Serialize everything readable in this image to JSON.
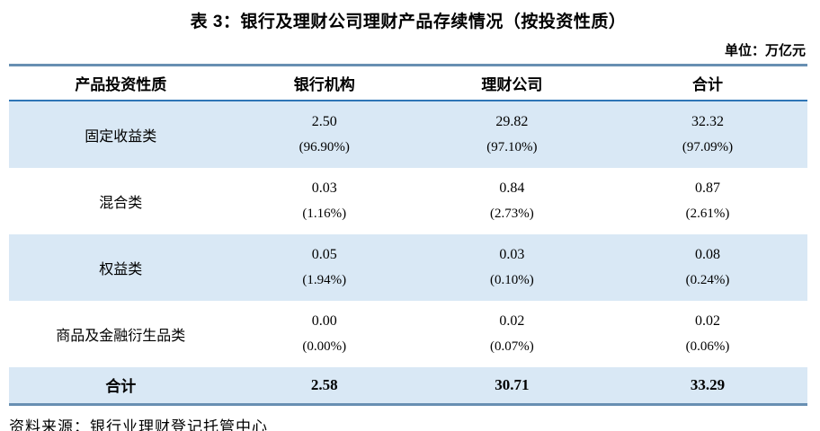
{
  "page": {
    "title": "表 3：银行及理财公司理财产品存续情况（按投资性质）",
    "unit_label": "单位：万亿元",
    "source_label": "资料来源：银行业理财登记托管中心"
  },
  "colors": {
    "row_highlight": "#D9E8F5",
    "outer_border": "#688FB2",
    "header_underline": "#2E75B6"
  },
  "chart_data": {
    "type": "table",
    "title": "表 3：银行及理财公司理财产品存续情况（按投资性质）",
    "unit": "万亿元",
    "columns": [
      "产品投资性质",
      "银行机构",
      "理财公司",
      "合计"
    ],
    "rows": [
      {
        "label": "固定收益类",
        "values": [
          "2.50",
          "29.82",
          "32.32"
        ],
        "percents": [
          "(96.90%)",
          "(97.10%)",
          "(97.09%)"
        ]
      },
      {
        "label": "混合类",
        "values": [
          "0.03",
          "0.84",
          "0.87"
        ],
        "percents": [
          "(1.16%)",
          "(2.73%)",
          "(2.61%)"
        ]
      },
      {
        "label": "权益类",
        "values": [
          "0.05",
          "0.03",
          "0.08"
        ],
        "percents": [
          "(1.94%)",
          "(0.10%)",
          "(0.24%)"
        ]
      },
      {
        "label": "商品及金融衍生品类",
        "values": [
          "0.00",
          "0.02",
          "0.02"
        ],
        "percents": [
          "(0.00%)",
          "(0.07%)",
          "(0.06%)"
        ]
      }
    ],
    "total_row": {
      "label": "合计",
      "values": [
        "2.58",
        "30.71",
        "33.29"
      ]
    },
    "source": "资料来源：银行业理财登记托管中心"
  }
}
